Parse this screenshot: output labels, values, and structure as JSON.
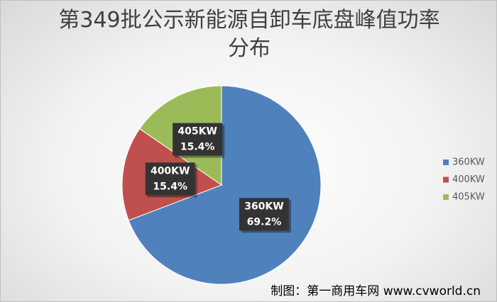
{
  "chart_data": {
    "type": "pie",
    "title": "第349批公示新能源自卸车底盘峰值功率分布",
    "categories": [
      "360KW",
      "400KW",
      "405KW"
    ],
    "values": [
      69.2,
      15.4,
      15.4
    ],
    "value_labels": [
      "69.2%",
      "15.4%",
      "15.4%"
    ],
    "colors": [
      "#4f81bd",
      "#c0504d",
      "#9bbb59"
    ],
    "legend": "right",
    "annotation": "制图：第一商用车网 www.cvworld.cn"
  }
}
